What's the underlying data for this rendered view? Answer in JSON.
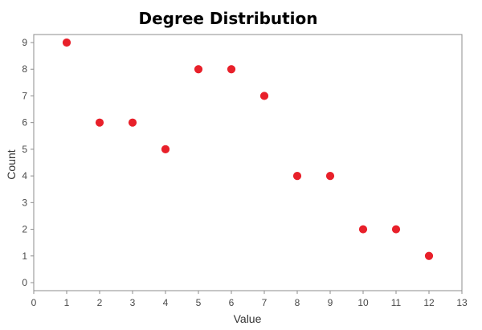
{
  "chart_data": {
    "type": "scatter",
    "title": "Degree Distribution",
    "xlabel": "Value",
    "ylabel": "Count",
    "xlim": [
      0,
      13
    ],
    "ylim": [
      0,
      9
    ],
    "x_ticks": [
      0,
      1,
      2,
      3,
      4,
      5,
      6,
      7,
      8,
      9,
      10,
      11,
      12,
      13
    ],
    "y_ticks": [
      0,
      1,
      2,
      3,
      4,
      5,
      6,
      7,
      8,
      9
    ],
    "grid": true,
    "marker_color": "#e8202a",
    "series": [
      {
        "points": [
          {
            "x": 1,
            "y": 9
          },
          {
            "x": 2,
            "y": 6
          },
          {
            "x": 3,
            "y": 6
          },
          {
            "x": 4,
            "y": 5
          },
          {
            "x": 5,
            "y": 8
          },
          {
            "x": 6,
            "y": 8
          },
          {
            "x": 7,
            "y": 7
          },
          {
            "x": 8,
            "y": 4
          },
          {
            "x": 9,
            "y": 4
          },
          {
            "x": 10,
            "y": 2
          },
          {
            "x": 11,
            "y": 2
          },
          {
            "x": 12,
            "y": 1
          }
        ]
      }
    ]
  }
}
